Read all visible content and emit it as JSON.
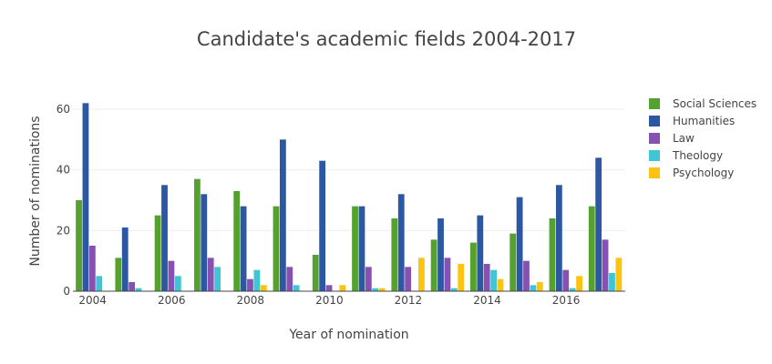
{
  "chart_data": {
    "type": "bar",
    "title": "Candidate's academic fields 2004-2017",
    "xlabel": "Year of nomination",
    "ylabel": "Number of nominations",
    "x": [
      2004,
      2005,
      2006,
      2007,
      2008,
      2009,
      2010,
      2011,
      2012,
      2013,
      2014,
      2015,
      2016,
      2017
    ],
    "x_ticks": [
      2004,
      2006,
      2008,
      2010,
      2012,
      2014,
      2016
    ],
    "y_ticks": [
      0,
      20,
      40,
      60
    ],
    "ylim": [
      0,
      66
    ],
    "grid": true,
    "legend_position": "right",
    "series": [
      {
        "name": "Social Sciences",
        "color": "#54a22d",
        "values": [
          30,
          11,
          25,
          37,
          33,
          28,
          12,
          28,
          24,
          17,
          16,
          19,
          24,
          28
        ]
      },
      {
        "name": "Humanities",
        "color": "#2c57a3",
        "values": [
          62,
          21,
          35,
          32,
          28,
          50,
          43,
          28,
          32,
          24,
          25,
          31,
          35,
          44
        ]
      },
      {
        "name": "Law",
        "color": "#8751b2",
        "values": [
          15,
          3,
          10,
          11,
          4,
          8,
          2,
          8,
          8,
          11,
          9,
          10,
          7,
          17
        ]
      },
      {
        "name": "Theology",
        "color": "#3fc5d3",
        "values": [
          5,
          1,
          5,
          8,
          7,
          2,
          0,
          1,
          0,
          1,
          7,
          2,
          1,
          6
        ]
      },
      {
        "name": "Psychology",
        "color": "#fbc412",
        "values": [
          0,
          0,
          0,
          0,
          2,
          0,
          2,
          1,
          11,
          9,
          4,
          3,
          5,
          11
        ]
      }
    ]
  }
}
